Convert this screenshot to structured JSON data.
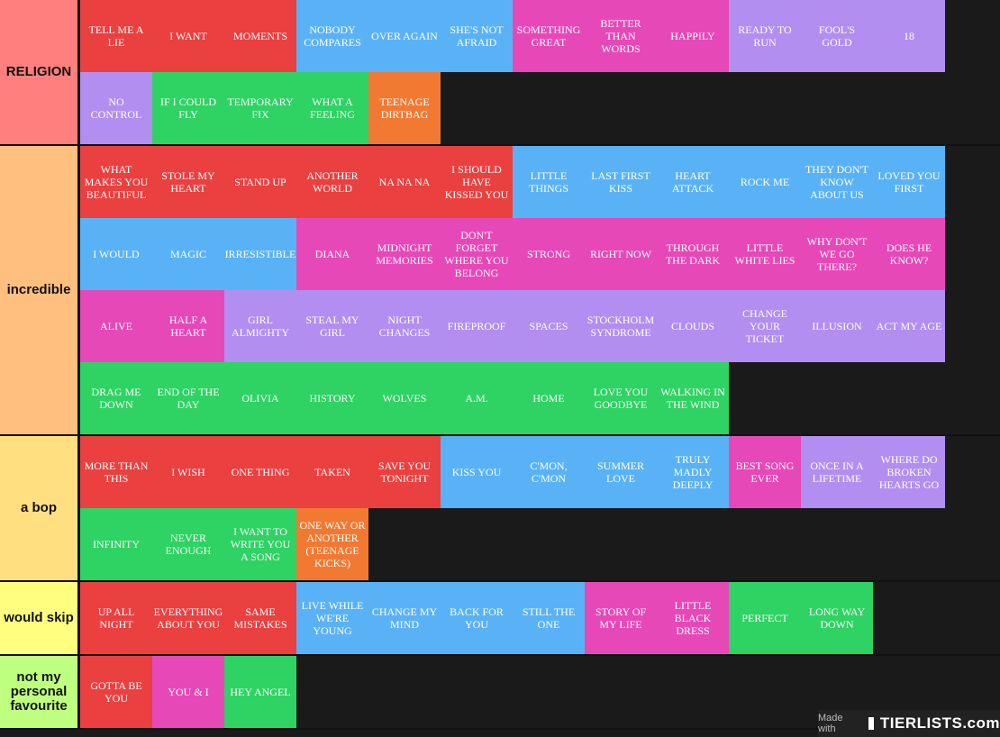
{
  "colors": {
    "red": "#ea4040",
    "blue": "#5ab2f6",
    "pink": "#e648b8",
    "lavender": "#b28ef0",
    "green": "#2ed363",
    "orange": "#f27932"
  },
  "tiers": [
    {
      "label": "RELIGION",
      "color": "#ff7f7f",
      "items": [
        {
          "text": "TELL ME A LIE",
          "color": "red"
        },
        {
          "text": "I WANT",
          "color": "red"
        },
        {
          "text": "MOMENTS",
          "color": "red"
        },
        {
          "text": "NOBODY COMPARES",
          "color": "blue"
        },
        {
          "text": "OVER AGAIN",
          "color": "blue"
        },
        {
          "text": "SHE'S NOT AFRAID",
          "color": "blue"
        },
        {
          "text": "SOMETHING GREAT",
          "color": "pink"
        },
        {
          "text": "BETTER THAN WORDS",
          "color": "pink"
        },
        {
          "text": "HAPPILY",
          "color": "pink"
        },
        {
          "text": "READY TO RUN",
          "color": "lavender"
        },
        {
          "text": "FOOL'S GOLD",
          "color": "lavender"
        },
        {
          "text": "18",
          "color": "lavender"
        },
        {
          "text": "NO CONTROL",
          "color": "lavender"
        },
        {
          "text": "IF I COULD FLY",
          "color": "green"
        },
        {
          "text": "TEMPORARY FIX",
          "color": "green"
        },
        {
          "text": "WHAT A FEELING",
          "color": "green"
        },
        {
          "text": "TEENAGE DIRTBAG",
          "color": "orange"
        }
      ]
    },
    {
      "label": "incredible",
      "color": "#ffbf7f",
      "items": [
        {
          "text": "WHAT MAKES YOU BEAUTIFUL",
          "color": "red"
        },
        {
          "text": "STOLE MY HEART",
          "color": "red"
        },
        {
          "text": "STAND UP",
          "color": "red"
        },
        {
          "text": "ANOTHER WORLD",
          "color": "red"
        },
        {
          "text": "NA NA NA",
          "color": "red"
        },
        {
          "text": "I SHOULD HAVE KISSED YOU",
          "color": "red"
        },
        {
          "text": "LITTLE THINGS",
          "color": "blue"
        },
        {
          "text": "LAST FIRST KISS",
          "color": "blue"
        },
        {
          "text": "HEART ATTACK",
          "color": "blue"
        },
        {
          "text": "ROCK ME",
          "color": "blue"
        },
        {
          "text": "THEY DON'T KNOW ABOUT US",
          "color": "blue"
        },
        {
          "text": "LOVED YOU FIRST",
          "color": "blue"
        },
        {
          "text": "I WOULD",
          "color": "blue"
        },
        {
          "text": "MAGIC",
          "color": "blue"
        },
        {
          "text": "IRRESISTIBLE",
          "color": "blue"
        },
        {
          "text": "DIANA",
          "color": "pink"
        },
        {
          "text": "MIDNIGHT MEMORIES",
          "color": "pink"
        },
        {
          "text": "DON'T FORGET WHERE YOU BELONG",
          "color": "pink"
        },
        {
          "text": "STRONG",
          "color": "pink"
        },
        {
          "text": "RIGHT NOW",
          "color": "pink"
        },
        {
          "text": "THROUGH THE DARK",
          "color": "pink"
        },
        {
          "text": "LITTLE WHITE LIES",
          "color": "pink"
        },
        {
          "text": "WHY DON'T WE GO THERE?",
          "color": "pink"
        },
        {
          "text": "DOES HE KNOW?",
          "color": "pink"
        },
        {
          "text": "ALIVE",
          "color": "pink"
        },
        {
          "text": "HALF A HEART",
          "color": "pink"
        },
        {
          "text": "GIRL ALMIGHTY",
          "color": "lavender"
        },
        {
          "text": "STEAL MY GIRL",
          "color": "lavender"
        },
        {
          "text": "NIGHT CHANGES",
          "color": "lavender"
        },
        {
          "text": "FIREPROOF",
          "color": "lavender"
        },
        {
          "text": "SPACES",
          "color": "lavender"
        },
        {
          "text": "STOCKHOLM SYNDROME",
          "color": "lavender"
        },
        {
          "text": "CLOUDS",
          "color": "lavender"
        },
        {
          "text": "CHANGE YOUR TICKET",
          "color": "lavender"
        },
        {
          "text": "ILLUSION",
          "color": "lavender"
        },
        {
          "text": "ACT MY AGE",
          "color": "lavender"
        },
        {
          "text": "DRAG ME DOWN",
          "color": "green"
        },
        {
          "text": "END OF THE DAY",
          "color": "green"
        },
        {
          "text": "OLIVIA",
          "color": "green"
        },
        {
          "text": "HISTORY",
          "color": "green"
        },
        {
          "text": "WOLVES",
          "color": "green"
        },
        {
          "text": "A.M.",
          "color": "green"
        },
        {
          "text": "HOME",
          "color": "green"
        },
        {
          "text": "LOVE YOU GOODBYE",
          "color": "green"
        },
        {
          "text": "WALKING IN THE WIND",
          "color": "green"
        }
      ]
    },
    {
      "label": "a bop",
      "color": "#ffdf7f",
      "items": [
        {
          "text": "MORE THAN THIS",
          "color": "red"
        },
        {
          "text": "I WISH",
          "color": "red"
        },
        {
          "text": "ONE THING",
          "color": "red"
        },
        {
          "text": "TAKEN",
          "color": "red"
        },
        {
          "text": "SAVE YOU TONIGHT",
          "color": "red"
        },
        {
          "text": "KISS YOU",
          "color": "blue"
        },
        {
          "text": "C'MON, C'MON",
          "color": "blue"
        },
        {
          "text": "SUMMER LOVE",
          "color": "blue"
        },
        {
          "text": "TRULY MADLY DEEPLY",
          "color": "blue"
        },
        {
          "text": "BEST SONG EVER",
          "color": "pink"
        },
        {
          "text": "ONCE IN A LIFETIME",
          "color": "lavender"
        },
        {
          "text": "WHERE DO BROKEN HEARTS GO",
          "color": "lavender"
        },
        {
          "text": "INFINITY",
          "color": "green"
        },
        {
          "text": "NEVER ENOUGH",
          "color": "green"
        },
        {
          "text": "I WANT TO WRITE YOU A SONG",
          "color": "green"
        },
        {
          "text": "ONE WAY OR ANOTHER (TEENAGE KICKS)",
          "color": "orange"
        }
      ]
    },
    {
      "label": "would skip",
      "color": "#ffff7f",
      "items": [
        {
          "text": "UP ALL NIGHT",
          "color": "red"
        },
        {
          "text": "EVERYTHING ABOUT YOU",
          "color": "red"
        },
        {
          "text": "SAME MISTAKES",
          "color": "red"
        },
        {
          "text": "LIVE WHILE WE'RE YOUNG",
          "color": "blue"
        },
        {
          "text": "CHANGE MY MIND",
          "color": "blue"
        },
        {
          "text": "BACK FOR YOU",
          "color": "blue"
        },
        {
          "text": "STILL THE ONE",
          "color": "blue"
        },
        {
          "text": "STORY OF MY LIFE",
          "color": "pink"
        },
        {
          "text": "LITTLE BLACK DRESS",
          "color": "pink"
        },
        {
          "text": "PERFECT",
          "color": "green"
        },
        {
          "text": "LONG WAY DOWN",
          "color": "green"
        }
      ]
    },
    {
      "label": "not my personal favourite",
      "color": "#bfff7f",
      "items": [
        {
          "text": "GOTTA BE YOU",
          "color": "red"
        },
        {
          "text": "YOU & I",
          "color": "pink"
        },
        {
          "text": "HEY ANGEL",
          "color": "green"
        }
      ]
    }
  ],
  "watermark": {
    "prefix": "Made with",
    "brand": "TIERLISTS.com"
  }
}
